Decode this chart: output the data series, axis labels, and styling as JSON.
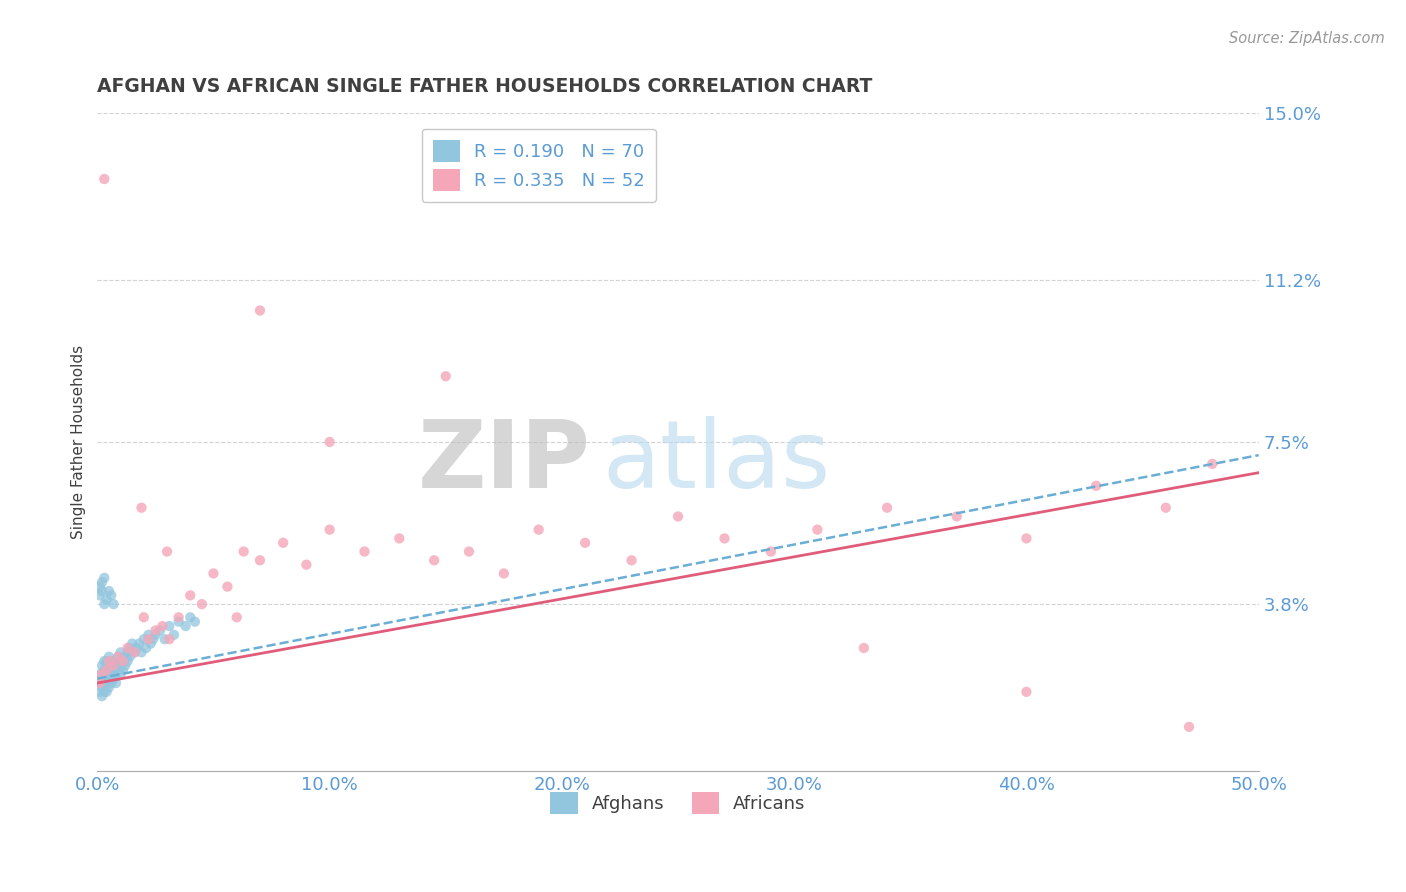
{
  "title": "AFGHAN VS AFRICAN SINGLE FATHER HOUSEHOLDS CORRELATION CHART",
  "source_text": "Source: ZipAtlas.com",
  "ylabel": "Single Father Households",
  "xlim": [
    0,
    0.5
  ],
  "ylim": [
    0,
    0.15
  ],
  "xticks": [
    0.0,
    0.1,
    0.2,
    0.3,
    0.4,
    0.5
  ],
  "xtick_labels": [
    "0.0%",
    "10.0%",
    "20.0%",
    "30.0%",
    "40.0%",
    "50.0%"
  ],
  "yticks": [
    0.0,
    0.038,
    0.075,
    0.112,
    0.15
  ],
  "ytick_labels": [
    "",
    "3.8%",
    "7.5%",
    "11.2%",
    "15.0%"
  ],
  "afghan_color": "#92C5DE",
  "african_color": "#F4A7B9",
  "afghan_line_color": "#6AAED6",
  "african_line_color": "#E05C7A",
  "legend_afghan_label": "R = 0.190   N = 70",
  "legend_african_label": "R = 0.335   N = 52",
  "legend_label_afghans": "Afghans",
  "legend_label_africans": "Africans",
  "watermark_zip": "ZIP",
  "watermark_atlas": "atlas",
  "title_color": "#404040",
  "tick_color": "#5B9BD5",
  "background_color": "#FFFFFF",
  "grid_color": "#C8C8C8",
  "afghans_x": [
    0.001,
    0.001,
    0.001,
    0.002,
    0.002,
    0.002,
    0.002,
    0.003,
    0.003,
    0.003,
    0.003,
    0.004,
    0.004,
    0.004,
    0.004,
    0.005,
    0.005,
    0.005,
    0.005,
    0.006,
    0.006,
    0.006,
    0.007,
    0.007,
    0.007,
    0.008,
    0.008,
    0.008,
    0.009,
    0.009,
    0.01,
    0.01,
    0.01,
    0.011,
    0.011,
    0.012,
    0.012,
    0.013,
    0.013,
    0.014,
    0.014,
    0.015,
    0.016,
    0.017,
    0.018,
    0.019,
    0.02,
    0.021,
    0.022,
    0.023,
    0.024,
    0.025,
    0.027,
    0.029,
    0.031,
    0.033,
    0.035,
    0.038,
    0.04,
    0.042,
    0.001,
    0.001,
    0.002,
    0.002,
    0.003,
    0.003,
    0.004,
    0.005,
    0.006,
    0.007
  ],
  "afghans_y": [
    0.02,
    0.022,
    0.018,
    0.024,
    0.021,
    0.019,
    0.017,
    0.023,
    0.02,
    0.025,
    0.018,
    0.022,
    0.02,
    0.025,
    0.018,
    0.023,
    0.021,
    0.019,
    0.026,
    0.022,
    0.02,
    0.024,
    0.023,
    0.021,
    0.025,
    0.022,
    0.024,
    0.02,
    0.023,
    0.026,
    0.024,
    0.022,
    0.027,
    0.025,
    0.023,
    0.026,
    0.024,
    0.027,
    0.025,
    0.028,
    0.026,
    0.029,
    0.027,
    0.028,
    0.029,
    0.027,
    0.03,
    0.028,
    0.031,
    0.029,
    0.03,
    0.031,
    0.032,
    0.03,
    0.033,
    0.031,
    0.034,
    0.033,
    0.035,
    0.034,
    0.04,
    0.042,
    0.041,
    0.043,
    0.038,
    0.044,
    0.039,
    0.041,
    0.04,
    0.038
  ],
  "africans_x": [
    0.001,
    0.002,
    0.003,
    0.004,
    0.005,
    0.007,
    0.009,
    0.011,
    0.013,
    0.016,
    0.019,
    0.022,
    0.025,
    0.028,
    0.031,
    0.035,
    0.04,
    0.045,
    0.05,
    0.056,
    0.063,
    0.07,
    0.08,
    0.09,
    0.1,
    0.115,
    0.13,
    0.145,
    0.16,
    0.175,
    0.19,
    0.21,
    0.23,
    0.25,
    0.27,
    0.29,
    0.31,
    0.34,
    0.37,
    0.4,
    0.43,
    0.46,
    0.48,
    0.03,
    0.07,
    0.15,
    0.33,
    0.4,
    0.47,
    0.02,
    0.06,
    0.1
  ],
  "africans_y": [
    0.02,
    0.022,
    0.135,
    0.023,
    0.025,
    0.024,
    0.026,
    0.025,
    0.028,
    0.027,
    0.06,
    0.03,
    0.032,
    0.033,
    0.03,
    0.035,
    0.04,
    0.038,
    0.045,
    0.042,
    0.05,
    0.048,
    0.052,
    0.047,
    0.055,
    0.05,
    0.053,
    0.048,
    0.05,
    0.045,
    0.055,
    0.052,
    0.048,
    0.058,
    0.053,
    0.05,
    0.055,
    0.06,
    0.058,
    0.053,
    0.065,
    0.06,
    0.07,
    0.05,
    0.105,
    0.09,
    0.028,
    0.018,
    0.01,
    0.035,
    0.035,
    0.075
  ],
  "afghan_trendline_x0": 0.0,
  "afghan_trendline_y0": 0.021,
  "afghan_trendline_x1": 0.5,
  "afghan_trendline_y1": 0.072,
  "african_trendline_x0": 0.0,
  "african_trendline_y0": 0.02,
  "african_trendline_x1": 0.5,
  "african_trendline_y1": 0.068
}
